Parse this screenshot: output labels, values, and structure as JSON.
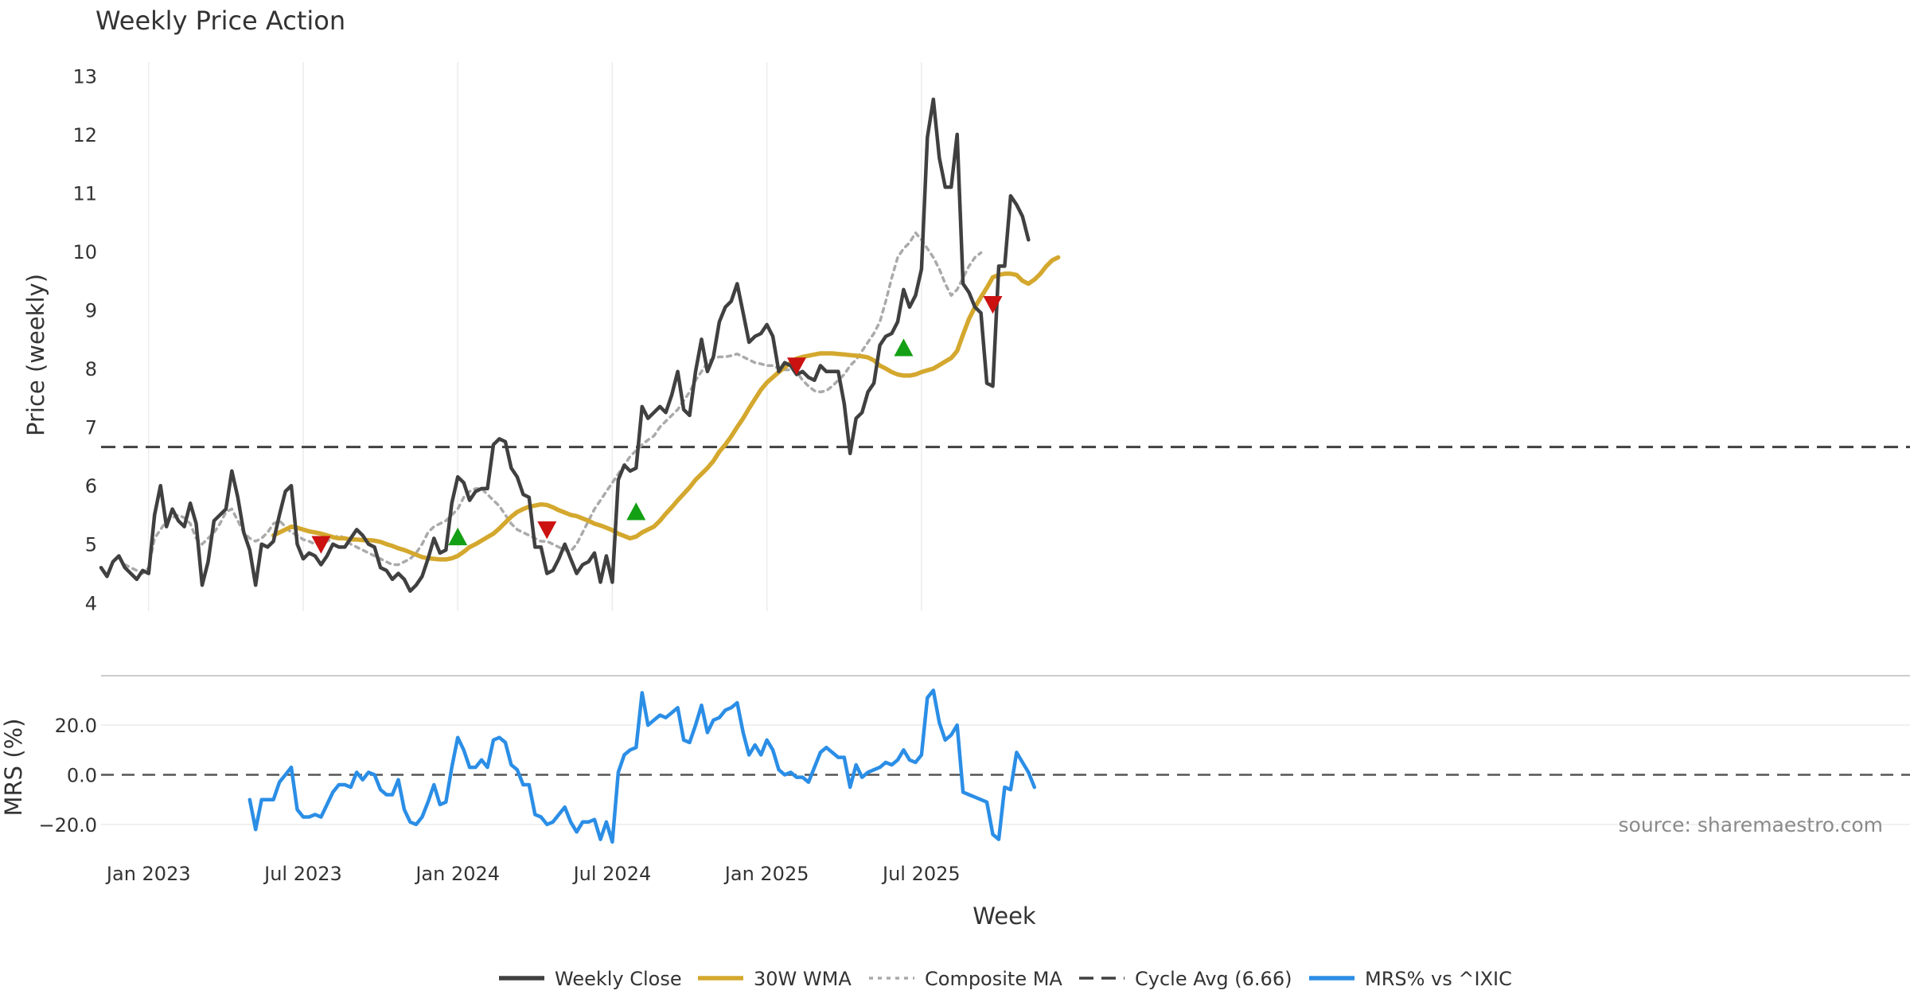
{
  "chart_data": [
    {
      "type": "line",
      "title": "Weekly Price Action",
      "xlabel": "Week",
      "ylabel": "Price (weekly)",
      "ylim": [
        3.8,
        13.1
      ],
      "yticks": [
        4,
        5,
        6,
        7,
        8,
        9,
        10,
        11,
        12,
        13
      ],
      "xticks": [
        {
          "week": 8,
          "label": "Jan 2023"
        },
        {
          "week": 34,
          "label": "Jul 2023"
        },
        {
          "week": 60,
          "label": "Jan 2024"
        },
        {
          "week": 86,
          "label": "Jul 2024"
        },
        {
          "week": 112,
          "label": "Jan 2025"
        },
        {
          "week": 138,
          "label": "Jul 2025"
        }
      ],
      "grid": true,
      "series": [
        {
          "name": "Weekly Close",
          "color": "#404040",
          "start_week": 0,
          "values": [
            4.6,
            4.45,
            4.7,
            4.8,
            4.6,
            4.5,
            4.4,
            4.55,
            4.5,
            5.5,
            6.0,
            5.3,
            5.6,
            5.4,
            5.3,
            5.7,
            5.35,
            4.3,
            4.7,
            5.4,
            5.5,
            5.6,
            6.25,
            5.8,
            5.2,
            4.9,
            4.3,
            5.0,
            4.95,
            5.05,
            5.5,
            5.9,
            6.0,
            5.0,
            4.75,
            4.85,
            4.8,
            4.65,
            4.8,
            5.0,
            4.95,
            4.95,
            5.1,
            5.25,
            5.15,
            5.0,
            4.95,
            4.6,
            4.55,
            4.4,
            4.5,
            4.4,
            4.2,
            4.3,
            4.45,
            4.75,
            5.1,
            4.85,
            4.9,
            5.7,
            6.15,
            6.05,
            5.75,
            5.9,
            5.95,
            5.95,
            6.7,
            6.8,
            6.75,
            6.3,
            6.15,
            5.85,
            5.8,
            4.95,
            4.95,
            4.5,
            4.55,
            4.75,
            5.0,
            4.75,
            4.5,
            4.65,
            4.7,
            4.85,
            4.35,
            4.8,
            4.35,
            6.1,
            6.35,
            6.25,
            6.3,
            7.35,
            7.15,
            7.25,
            7.35,
            7.25,
            7.55,
            7.95,
            7.3,
            7.2,
            7.95,
            8.5,
            7.95,
            8.2,
            8.8,
            9.05,
            9.15,
            9.45,
            8.95,
            8.45,
            8.55,
            8.6,
            8.75,
            8.55,
            7.95,
            8.1,
            8.05,
            7.9,
            7.95,
            7.85,
            7.8,
            8.05,
            7.95,
            7.95,
            7.95,
            7.4,
            6.55,
            7.15,
            7.25,
            7.6,
            7.75,
            8.4,
            8.55,
            8.6,
            8.8,
            9.35,
            9.05,
            9.25,
            9.7,
            11.95,
            12.6,
            11.6,
            11.1,
            11.1,
            12.0,
            9.45,
            9.3,
            9.05,
            8.95,
            7.75,
            7.7,
            9.75,
            9.75,
            10.95,
            10.8,
            10.6,
            10.2
          ]
        },
        {
          "name": "30W WMA",
          "color": "#d4a82e",
          "start_week": 29,
          "values": [
            5.15,
            5.2,
            5.25,
            5.3,
            5.28,
            5.25,
            5.22,
            5.2,
            5.18,
            5.15,
            5.12,
            5.1,
            5.1,
            5.08,
            5.08,
            5.07,
            5.07,
            5.06,
            5.04,
            5.0,
            4.97,
            4.93,
            4.9,
            4.86,
            4.82,
            4.78,
            4.76,
            4.75,
            4.74,
            4.74,
            4.76,
            4.8,
            4.87,
            4.95,
            5.0,
            5.06,
            5.12,
            5.18,
            5.27,
            5.37,
            5.47,
            5.55,
            5.6,
            5.64,
            5.66,
            5.68,
            5.67,
            5.63,
            5.58,
            5.54,
            5.5,
            5.48,
            5.44,
            5.4,
            5.35,
            5.32,
            5.28,
            5.24,
            5.18,
            5.14,
            5.1,
            5.13,
            5.2,
            5.25,
            5.3,
            5.4,
            5.52,
            5.63,
            5.75,
            5.86,
            5.97,
            6.1,
            6.2,
            6.3,
            6.42,
            6.58,
            6.7,
            6.84,
            7.0,
            7.15,
            7.32,
            7.48,
            7.64,
            7.76,
            7.85,
            7.94,
            8.02,
            8.1,
            8.17,
            8.2,
            8.22,
            8.24,
            8.26,
            8.26,
            8.26,
            8.25,
            8.24,
            8.23,
            8.22,
            8.21,
            8.19,
            8.14,
            8.05,
            8.0,
            7.94,
            7.9,
            7.88,
            7.88,
            7.9,
            7.94,
            7.97,
            8.0,
            8.06,
            8.12,
            8.18,
            8.3,
            8.58,
            8.85,
            9.05,
            9.22,
            9.38,
            9.56,
            9.6,
            9.62,
            9.62,
            9.6,
            9.5,
            9.45,
            9.52,
            9.62,
            9.75,
            9.85,
            9.9
          ]
        },
        {
          "name": "Composite MA",
          "color": "#aaaaaa",
          "start_week": 4,
          "values": [
            4.65,
            4.6,
            4.55,
            4.5,
            4.6,
            5.1,
            5.25,
            5.4,
            5.45,
            5.5,
            5.45,
            5.35,
            5.1,
            5.0,
            5.1,
            5.2,
            5.35,
            5.55,
            5.6,
            5.4,
            5.2,
            5.1,
            5.05,
            5.1,
            5.2,
            5.35,
            5.4,
            5.3,
            5.2,
            5.15,
            5.08,
            5.05,
            5.0,
            5.0,
            5.05,
            5.1,
            5.15,
            5.1,
            5.0,
            4.95,
            4.9,
            4.85,
            4.8,
            4.75,
            4.7,
            4.65,
            4.65,
            4.7,
            4.75,
            4.85,
            5.0,
            5.2,
            5.3,
            5.35,
            5.4,
            5.5,
            5.6,
            5.8,
            5.9,
            5.95,
            5.95,
            5.85,
            5.75,
            5.65,
            5.5,
            5.35,
            5.25,
            5.2,
            5.15,
            5.1,
            5.05,
            5.05,
            5.0,
            4.95,
            4.9,
            4.88,
            5.0,
            5.2,
            5.4,
            5.6,
            5.75,
            5.9,
            6.05,
            6.2,
            6.35,
            6.5,
            6.6,
            6.7,
            6.78,
            6.85,
            7.0,
            7.1,
            7.2,
            7.3,
            7.45,
            7.6,
            7.8,
            7.95,
            8.1,
            8.18,
            8.2,
            8.2,
            8.22,
            8.25,
            8.2,
            8.15,
            8.1,
            8.08,
            8.05,
            8.05,
            8.0,
            7.98,
            7.98,
            7.95,
            7.8,
            7.7,
            7.62,
            7.6,
            7.62,
            7.7,
            7.8,
            7.9,
            8.05,
            8.15,
            8.3,
            8.45,
            8.6,
            8.8,
            9.15,
            9.55,
            9.9,
            10.05,
            10.15,
            10.32,
            10.2,
            10.05,
            9.9,
            9.7,
            9.45,
            9.25,
            9.35,
            9.55,
            9.75,
            9.9,
            9.98
          ]
        }
      ],
      "reference_lines": [
        {
          "name": "Cycle Avg (6.66)",
          "value": 6.66,
          "color": "#404040"
        }
      ],
      "markers": [
        {
          "type": "sell",
          "week": 37,
          "value": 5.0,
          "color": "#cc1111"
        },
        {
          "type": "buy",
          "week": 60,
          "value": 5.12,
          "color": "#14a014"
        },
        {
          "type": "sell",
          "week": 75,
          "value": 5.25,
          "color": "#cc1111"
        },
        {
          "type": "buy",
          "week": 90,
          "value": 5.55,
          "color": "#14a014"
        },
        {
          "type": "sell",
          "week": 117,
          "value": 8.05,
          "color": "#cc1111"
        },
        {
          "type": "buy",
          "week": 135,
          "value": 8.35,
          "color": "#14a014"
        },
        {
          "type": "sell",
          "week": 150,
          "value": 9.1,
          "color": "#cc1111"
        }
      ]
    },
    {
      "type": "line",
      "ylabel": "MRS (%)",
      "ylim": [
        -29,
        37
      ],
      "yticks": [
        {
          "value": 20,
          "label": "20.0"
        },
        {
          "value": 0,
          "label": "0.0"
        },
        {
          "value": -20,
          "label": "−20.0"
        }
      ],
      "series": [
        {
          "name": "MRS% vs ^IXIC",
          "color": "#2b8ee6",
          "start_week": 25,
          "values": [
            -10,
            -22,
            -10,
            -10,
            -10,
            -3,
            0,
            3,
            -14,
            -17,
            -17,
            -16,
            -17,
            -12,
            -7,
            -4,
            -4,
            -5,
            1,
            -2,
            1,
            0,
            -6,
            -8,
            -8,
            -2,
            -14,
            -19,
            -20,
            -17,
            -11,
            -4,
            -12,
            -11,
            3,
            15,
            10,
            3,
            3,
            6,
            3,
            14,
            15,
            13,
            4,
            2,
            -4,
            -4,
            -16,
            -17,
            -20,
            -19,
            -16,
            -13,
            -19,
            -23,
            -19,
            -19,
            -18,
            -26,
            -19,
            -27,
            1,
            8,
            10,
            11,
            33,
            20,
            22,
            24,
            23,
            25,
            27,
            14,
            13,
            20,
            28,
            17,
            22,
            23,
            26,
            27,
            29,
            17,
            8,
            12,
            8,
            14,
            10,
            2,
            0,
            1,
            -1,
            -1,
            -3,
            3,
            9,
            11,
            9,
            7,
            7,
            -5,
            4,
            -1,
            1,
            2,
            3,
            5,
            4,
            6,
            10,
            6,
            5,
            8,
            31,
            34,
            21,
            14,
            16,
            20,
            -7,
            -8,
            -9,
            -10,
            -11,
            -24,
            -26,
            -5,
            -6,
            9,
            5,
            1,
            -5
          ]
        }
      ]
    }
  ],
  "source": "source: sharemaestro.com",
  "legend": [
    {
      "label": "Weekly Close",
      "style": "solid",
      "color": "#404040"
    },
    {
      "label": "30W WMA",
      "style": "solid",
      "color": "#d4a82e"
    },
    {
      "label": "Composite MA",
      "style": "dotted",
      "color": "#aaaaaa"
    },
    {
      "label": "Cycle Avg (6.66)",
      "style": "dashed",
      "color": "#404040"
    },
    {
      "label": "MRS% vs ^IXIC",
      "style": "solid",
      "color": "#2b8ee6"
    }
  ]
}
